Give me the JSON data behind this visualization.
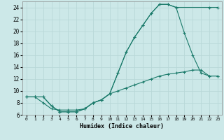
{
  "xlabel": "Humidex (Indice chaleur)",
  "background_color": "#cce8e8",
  "grid_color": "#b8d8d8",
  "line_color": "#1a7a6a",
  "xlim": [
    -0.5,
    23.5
  ],
  "ylim": [
    6,
    25
  ],
  "xticks": [
    0,
    1,
    2,
    3,
    4,
    5,
    6,
    7,
    8,
    9,
    10,
    11,
    12,
    13,
    14,
    15,
    16,
    17,
    18,
    19,
    20,
    21,
    22,
    23
  ],
  "yticks": [
    6,
    8,
    10,
    12,
    14,
    16,
    18,
    20,
    22,
    24
  ],
  "curve1_x": [
    0,
    1,
    2,
    3,
    4,
    5,
    6,
    7,
    8,
    9,
    10,
    11,
    12,
    13,
    14,
    15,
    16,
    17,
    18,
    22,
    23
  ],
  "curve1_y": [
    9,
    9,
    9,
    7.5,
    6.5,
    6.5,
    6.5,
    7,
    8,
    8.5,
    9.5,
    13,
    16.5,
    19,
    21,
    23,
    24.5,
    24.5,
    24,
    24,
    24
  ],
  "curve2_x": [
    0,
    1,
    2,
    3,
    4,
    5,
    6,
    7,
    8,
    9,
    10,
    11,
    12,
    13,
    14,
    15,
    16,
    17,
    18,
    19,
    20,
    21,
    22,
    23
  ],
  "curve2_y": [
    9,
    9,
    9,
    7.5,
    6.5,
    6.5,
    6.5,
    7,
    8,
    8.5,
    9.5,
    13,
    16.5,
    19,
    21,
    23,
    24.5,
    24.5,
    24,
    19.7,
    16,
    13.0,
    12.5,
    12.5
  ],
  "curve3_x": [
    0,
    1,
    2,
    3,
    4,
    5,
    6,
    7,
    8,
    9,
    10,
    11,
    12,
    13,
    14,
    15,
    16,
    17,
    18,
    19,
    20,
    21,
    22,
    23
  ],
  "curve3_y": [
    9,
    9,
    8,
    7,
    6.8,
    6.8,
    6.8,
    7,
    8,
    8.5,
    9.5,
    10,
    10.5,
    11,
    11.5,
    12,
    12.5,
    12.8,
    13,
    13.2,
    13.5,
    13.5,
    12.5,
    12.5
  ]
}
